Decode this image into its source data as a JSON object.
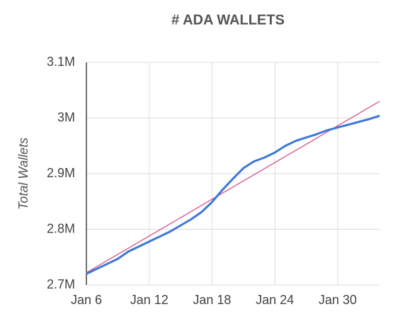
{
  "chart_data": {
    "type": "line",
    "title": "# ADA WALLETS",
    "y_label": "Total Wallets",
    "categories": [
      "Jan 6",
      null,
      null,
      null,
      null,
      null,
      "Jan 12",
      null,
      null,
      null,
      null,
      null,
      "Jan 18",
      null,
      null,
      null,
      null,
      null,
      "Jan 24",
      null,
      null,
      null,
      null,
      null,
      "Jan 30",
      null,
      null,
      null,
      null
    ],
    "series": [
      {
        "color": "#3c78d8",
        "values": [
          2720000,
          2729000,
          2738000,
          2747000,
          2760000,
          2769000,
          2778000,
          2787000,
          2796000,
          2807000,
          2818000,
          2831000,
          2849000,
          2871000,
          2891000,
          2910000,
          2922000,
          2929000,
          2938000,
          2950000,
          2959000,
          2965000,
          2971000,
          2978000,
          2983000,
          2988000,
          2993000,
          2998000,
          3004000
        ]
      },
      {
        "color": "#d9508a",
        "values": [
          2722000,
          2733000,
          2744000,
          2755000,
          2766000,
          2777000,
          2788000,
          2799000,
          2810000,
          2821000,
          2832000,
          2843000,
          2854000,
          2865000,
          2876000,
          2887000,
          2898000,
          2909000,
          2920000,
          2931000,
          2942000,
          2953000,
          2964000,
          2975000,
          2986000,
          2997000,
          3008000,
          3019000,
          3030000
        ]
      }
    ],
    "ylim": [
      2700000,
      3100000
    ],
    "yticks": [
      {
        "value": 2700000,
        "label": "2.7M"
      },
      {
        "value": 2800000,
        "label": "2.8M"
      },
      {
        "value": 2900000,
        "label": "2.9M"
      },
      {
        "value": 3000000,
        "label": "3M"
      },
      {
        "value": 3100000,
        "label": "3.1M"
      }
    ],
    "grid": true
  }
}
